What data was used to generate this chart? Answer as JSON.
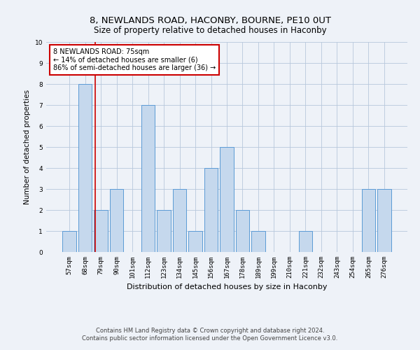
{
  "title1": "8, NEWLANDS ROAD, HACONBY, BOURNE, PE10 0UT",
  "title2": "Size of property relative to detached houses in Haconby",
  "xlabel": "Distribution of detached houses by size in Haconby",
  "ylabel": "Number of detached properties",
  "categories": [
    "57sqm",
    "68sqm",
    "79sqm",
    "90sqm",
    "101sqm",
    "112sqm",
    "123sqm",
    "134sqm",
    "145sqm",
    "156sqm",
    "167sqm",
    "178sqm",
    "189sqm",
    "199sqm",
    "210sqm",
    "221sqm",
    "232sqm",
    "243sqm",
    "254sqm",
    "265sqm",
    "276sqm"
  ],
  "values": [
    1,
    8,
    2,
    3,
    0,
    7,
    2,
    3,
    1,
    4,
    5,
    2,
    1,
    0,
    0,
    1,
    0,
    0,
    0,
    3,
    3
  ],
  "bar_color": "#c5d8ed",
  "bar_edge_color": "#5b9bd5",
  "annotation_text": "8 NEWLANDS ROAD: 75sqm\n← 14% of detached houses are smaller (6)\n86% of semi-detached houses are larger (36) →",
  "annotation_box_color": "#ffffff",
  "annotation_border_color": "#cc0000",
  "red_line_color": "#cc0000",
  "ylim": [
    0,
    10
  ],
  "yticks": [
    0,
    1,
    2,
    3,
    4,
    5,
    6,
    7,
    8,
    9,
    10
  ],
  "footer": "Contains HM Land Registry data © Crown copyright and database right 2024.\nContains public sector information licensed under the Open Government Licence v3.0.",
  "title1_fontsize": 9.5,
  "title2_fontsize": 8.5,
  "xlabel_fontsize": 8,
  "ylabel_fontsize": 7.5,
  "tick_fontsize": 6.5,
  "annotation_fontsize": 7,
  "footer_fontsize": 6,
  "background_color": "#eef2f8",
  "plot_bg_color": "#eef2f8",
  "grid_color": "#b8c8dc"
}
